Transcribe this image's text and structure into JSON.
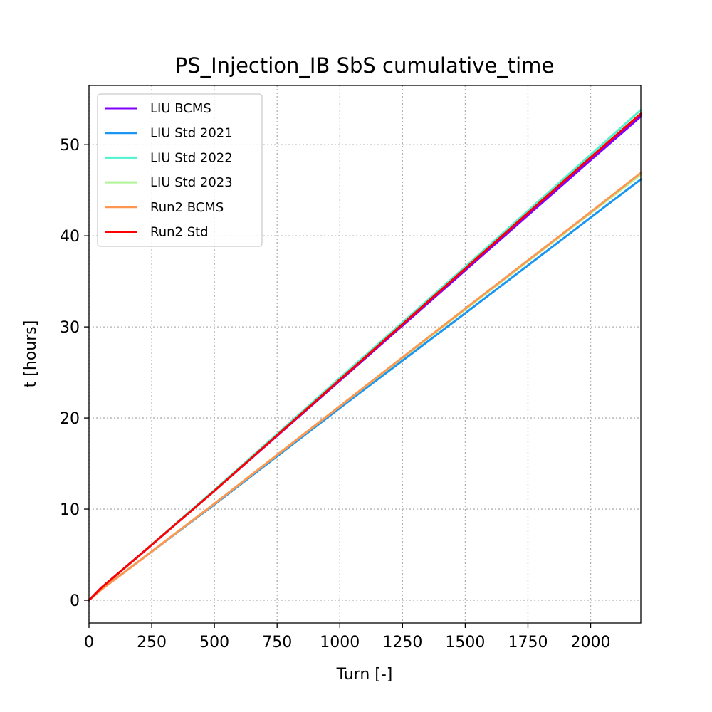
{
  "chart_data": {
    "type": "line",
    "title": "PS_Injection_IB SbS cumulative_time",
    "xlabel": "Turn [-]",
    "ylabel": "t [hours]",
    "xlim": [
      0,
      2200
    ],
    "ylim": [
      -2.5,
      56.5
    ],
    "xticks": [
      0,
      250,
      500,
      750,
      1000,
      1250,
      1500,
      1750,
      2000
    ],
    "yticks": [
      0,
      10,
      20,
      30,
      40,
      50
    ],
    "grid": true,
    "legend_position": "top-left",
    "series": [
      {
        "name": "LIU BCMS",
        "color": "#8000ff",
        "x": [
          0,
          50,
          200,
          500,
          1000,
          1500,
          2000,
          2200
        ],
        "y": [
          0,
          1.4,
          4.9,
          12.0,
          24.1,
          36.2,
          48.3,
          53.1
        ]
      },
      {
        "name": "LIU Std 2021",
        "color": "#1996f3",
        "x": [
          0,
          50,
          200,
          500,
          1000,
          1500,
          2000,
          2200
        ],
        "y": [
          0,
          1.2,
          4.3,
          10.5,
          21.1,
          31.5,
          42.0,
          46.2
        ]
      },
      {
        "name": "LIU Std 2022",
        "color": "#4df3ce",
        "x": [
          0,
          50,
          200,
          500,
          1000,
          1500,
          2000,
          2200
        ],
        "y": [
          0,
          1.4,
          4.9,
          12.1,
          24.4,
          36.6,
          48.9,
          53.8
        ]
      },
      {
        "name": "LIU Std 2023",
        "color": "#b2f396",
        "x": [
          0,
          50,
          200,
          500,
          1000,
          1500,
          2000,
          2200
        ],
        "y": [
          0,
          1.2,
          4.3,
          10.6,
          21.3,
          31.9,
          42.5,
          46.7
        ]
      },
      {
        "name": "Run2 BCMS",
        "color": "#ff964f",
        "x": [
          0,
          50,
          200,
          500,
          1000,
          1500,
          2000,
          2200
        ],
        "y": [
          0,
          1.2,
          4.3,
          10.6,
          21.3,
          32.0,
          42.6,
          46.9
        ]
      },
      {
        "name": "Run2 Std",
        "color": "#ff0000",
        "x": [
          0,
          50,
          200,
          500,
          1000,
          1500,
          2000,
          2200
        ],
        "y": [
          0,
          1.4,
          4.9,
          12.0,
          24.2,
          36.4,
          48.6,
          53.4
        ]
      }
    ]
  }
}
